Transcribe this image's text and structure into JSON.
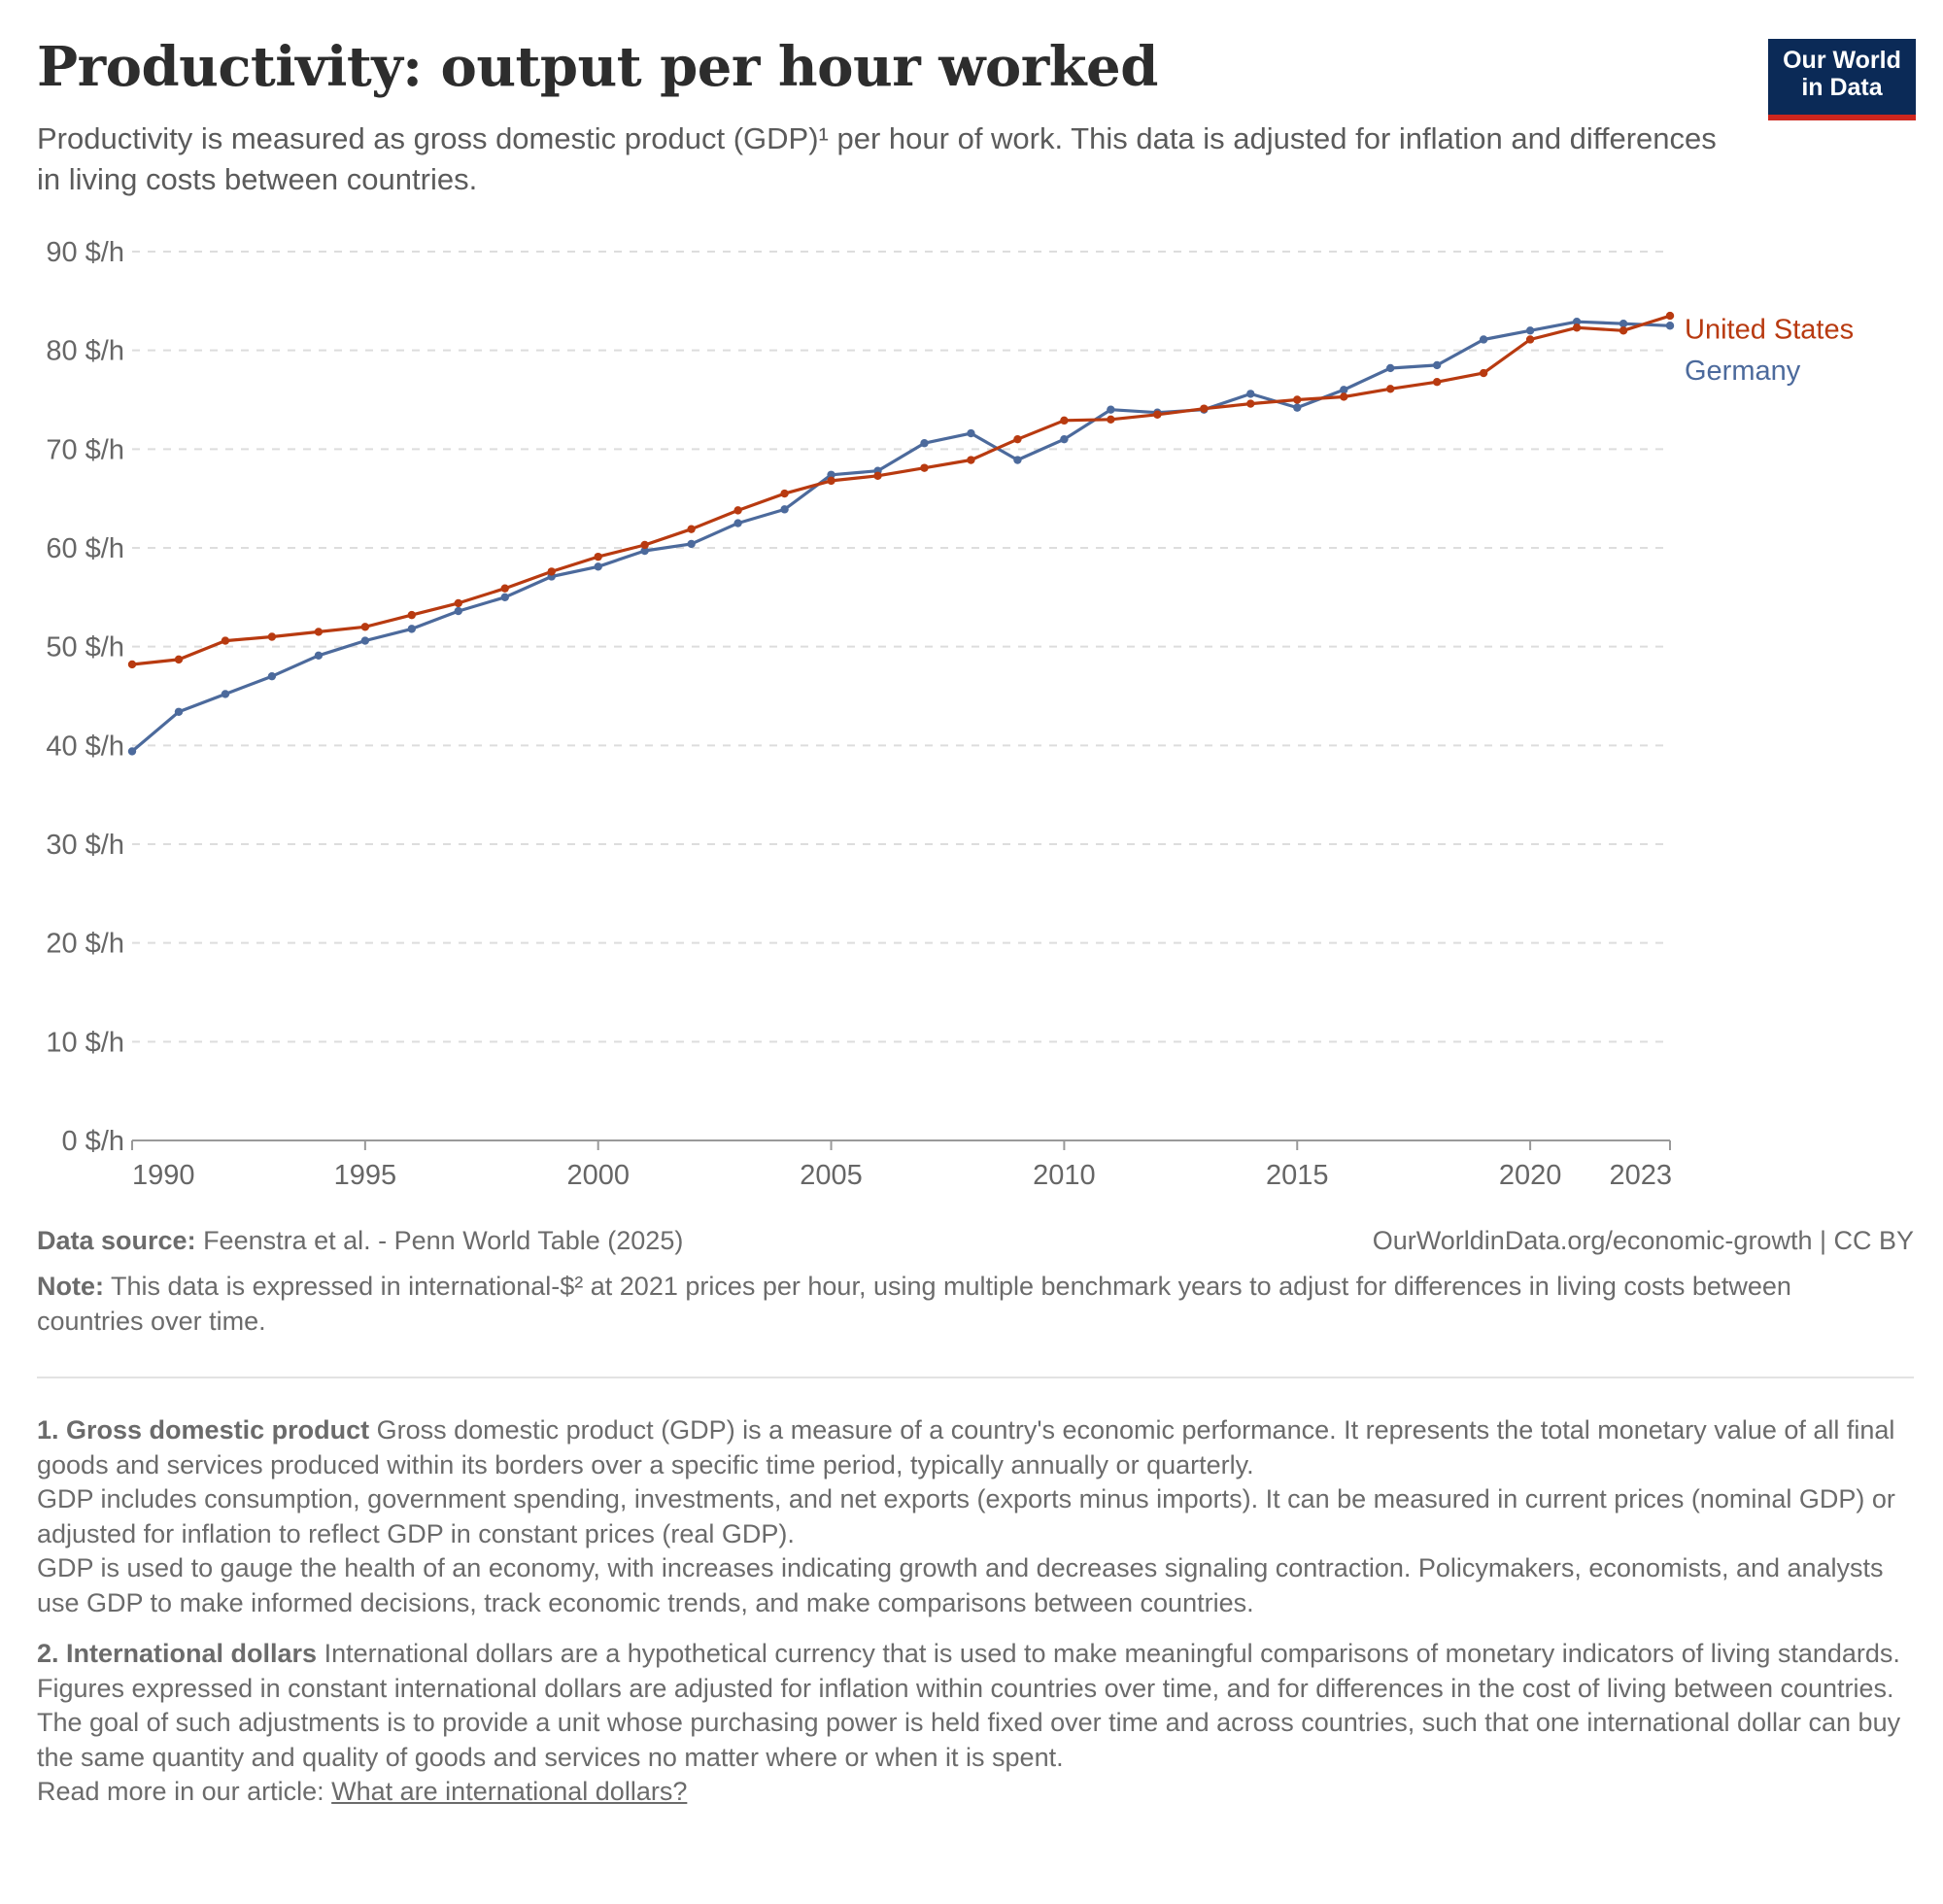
{
  "header": {
    "title": "Productivity: output per hour worked",
    "subtitle": "Productivity is measured as gross domestic product (GDP)¹ per hour of work. This data is adjusted for inflation and differences in living costs between countries.",
    "logo_line1": "Our World",
    "logo_line2": "in Data"
  },
  "colors": {
    "united_states": "#b83a10",
    "germany": "#4c6a9c",
    "grid": "#dddddd",
    "axis": "#999999",
    "logo_bg": "#0b2a57",
    "logo_accent": "#ce261e"
  },
  "chart_data": {
    "type": "line",
    "title": "Productivity: output per hour worked",
    "ylabel": "",
    "xlabel": "",
    "ylim": [
      0,
      90
    ],
    "xlim": [
      1990,
      2023
    ],
    "y_ticks": [
      0,
      10,
      20,
      30,
      40,
      50,
      60,
      70,
      80,
      90
    ],
    "y_tick_labels": [
      "0 $/h",
      "10 $/h",
      "20 $/h",
      "30 $/h",
      "40 $/h",
      "50 $/h",
      "60 $/h",
      "70 $/h",
      "80 $/h",
      "90 $/h"
    ],
    "x_ticks": [
      1990,
      1995,
      2000,
      2005,
      2010,
      2015,
      2020,
      2023
    ],
    "x_tick_labels": [
      "1990",
      "1995",
      "2000",
      "2005",
      "2010",
      "2015",
      "2020",
      "2023"
    ],
    "grid": "horizontal dashed",
    "legend": "inline labels at line ends (right)",
    "x": [
      1990,
      1991,
      1992,
      1993,
      1994,
      1995,
      1996,
      1997,
      1998,
      1999,
      2000,
      2001,
      2002,
      2003,
      2004,
      2005,
      2006,
      2007,
      2008,
      2009,
      2010,
      2011,
      2012,
      2013,
      2014,
      2015,
      2016,
      2017,
      2018,
      2019,
      2020,
      2021,
      2022,
      2023
    ],
    "series": [
      {
        "name": "United States",
        "color": "#b83a10",
        "values": [
          48.2,
          48.7,
          50.6,
          51.0,
          51.5,
          52.0,
          53.2,
          54.4,
          55.9,
          57.6,
          59.1,
          60.3,
          61.9,
          63.8,
          65.5,
          66.8,
          67.3,
          68.1,
          68.9,
          71.0,
          72.9,
          73.0,
          73.5,
          74.1,
          74.6,
          75.0,
          75.3,
          76.1,
          76.8,
          77.7,
          81.1,
          82.3,
          82.0,
          83.5
        ]
      },
      {
        "name": "Germany",
        "color": "#4c6a9c",
        "values": [
          39.4,
          43.4,
          45.2,
          47.0,
          49.1,
          50.6,
          51.8,
          53.6,
          55.0,
          57.1,
          58.1,
          59.7,
          60.4,
          62.5,
          63.9,
          67.4,
          67.8,
          70.6,
          71.6,
          68.9,
          71.0,
          74.0,
          73.7,
          74.0,
          75.6,
          74.2,
          76.0,
          78.2,
          78.5,
          81.1,
          82.0,
          82.9,
          82.7,
          82.5
        ]
      }
    ]
  },
  "footer": {
    "source_label": "Data source:",
    "source_text": " Feenstra et al. - Penn World Table (2025)",
    "license": "OurWorldinData.org/economic-growth | CC BY",
    "note_label": "Note:",
    "note_text": " This data is expressed in international-$² at 2021 prices per hour, using multiple benchmark years to adjust for differences in living costs between countries over time."
  },
  "footnotes": {
    "fn1_title": "1. Gross domestic product",
    "fn1_p1": " Gross domestic product (GDP) is a measure of a country's economic performance. It represents the total monetary value of all final goods and services produced within its borders over a specific time period, typically annually or quarterly.",
    "fn1_p2": "GDP includes consumption, government spending, investments, and net exports (exports minus imports). It can be measured in current prices (nominal GDP) or adjusted for inflation to reflect GDP in constant prices (real GDP).",
    "fn1_p3": "GDP is used to gauge the health of an economy, with increases indicating growth and decreases signaling contraction. Policymakers, economists, and analysts use GDP to make informed decisions, track economic trends, and make comparisons between countries.",
    "fn2_title": "2. International dollars",
    "fn2_p1": " International dollars are a hypothetical currency that is used to make meaningful comparisons of monetary indicators of living standards.",
    "fn2_p2": "Figures expressed in constant international dollars are adjusted for inflation within countries over time, and for differences in the cost of living between countries.",
    "fn2_p3": "The goal of such adjustments is to provide a unit whose purchasing power is held fixed over time and across countries, such that one international dollar can buy the same quantity and quality of goods and services no matter where or when it is spent.",
    "read_more": "Read more in our article: ",
    "read_more_link": "What are international dollars?"
  }
}
